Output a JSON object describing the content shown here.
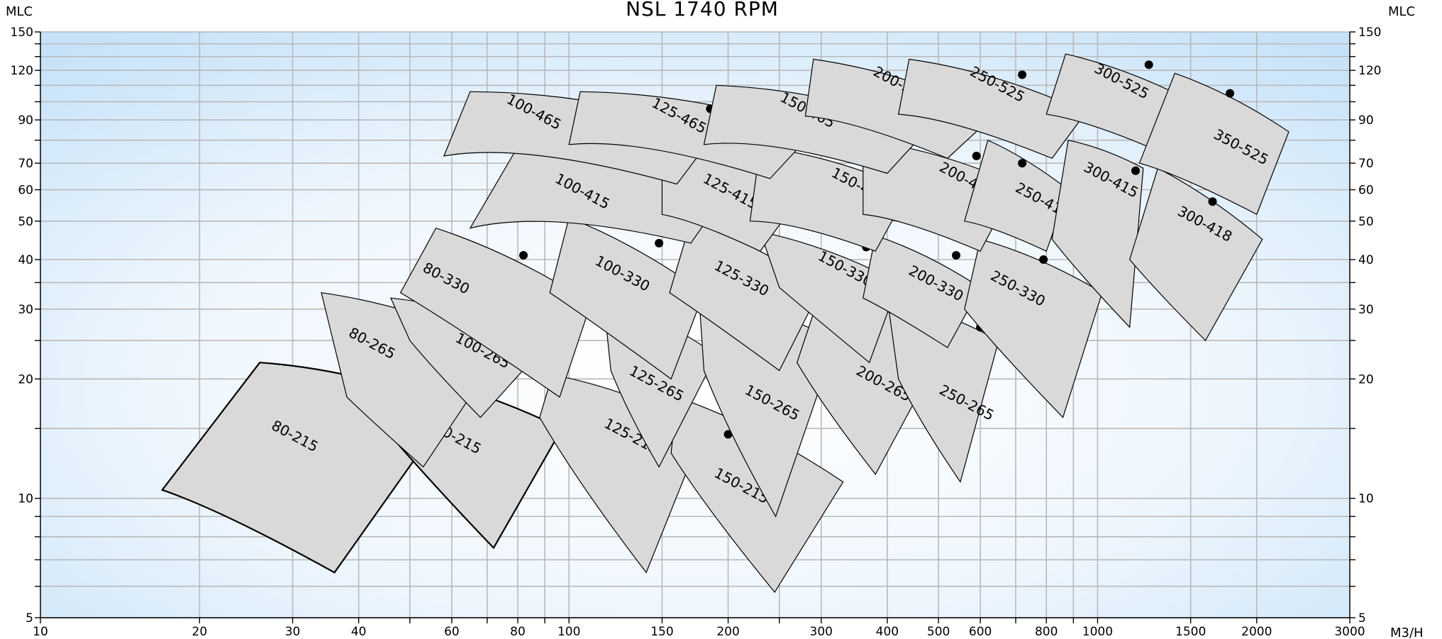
{
  "chart_data": {
    "type": "pump-selection-chart",
    "title": "NSL 1740 RPM",
    "x_axis": {
      "unit": "M3/H",
      "scale": "log",
      "range": [
        10,
        3000
      ],
      "tick_labels": [
        10,
        20,
        30,
        40,
        60,
        80,
        100,
        150,
        200,
        300,
        400,
        500,
        600,
        800,
        1000,
        1500,
        2000,
        3000
      ],
      "minor_ticks": [
        50,
        70,
        90,
        250,
        700,
        900
      ]
    },
    "y_axis": {
      "unit_left": "MLC",
      "unit_right": "MLC",
      "scale": "log",
      "range": [
        5,
        150
      ],
      "tick_labels": [
        5,
        10,
        20,
        30,
        40,
        50,
        60,
        70,
        90,
        120,
        150
      ],
      "minor_ticks": [
        6,
        7,
        8,
        9,
        15,
        25,
        35,
        80,
        100,
        110,
        130,
        140
      ]
    },
    "grid": true,
    "background": {
      "gradient_edge": "#c6e2f8",
      "gradient_center": "#ffffff"
    },
    "tile_fill": "#d9d9d9",
    "pumps": [
      {
        "label": "80-215",
        "bep": null,
        "corners": [
          [
            17,
            10.5
          ],
          [
            26,
            22
          ],
          [
            60,
            17
          ],
          [
            36,
            6.5
          ]
        ],
        "label_at": [
          30,
          14
        ],
        "bold": true
      },
      {
        "label": "100-215",
        "bep": [
          72,
          19
        ],
        "corners": [
          [
            40,
            18
          ],
          [
            42,
            21.5
          ],
          [
            97,
            15
          ],
          [
            72,
            7.5
          ]
        ],
        "label_at": [
          60,
          14
        ],
        "bold": true
      },
      {
        "label": "125-215",
        "bep": [
          137,
          18.5
        ],
        "corners": [
          [
            88,
            16
          ],
          [
            93,
            20.5
          ],
          [
            180,
            15
          ],
          [
            140,
            6.5
          ]
        ],
        "label_at": [
          130,
          14
        ]
      },
      {
        "label": "150-215",
        "bep": [
          200,
          14.5
        ],
        "corners": [
          [
            156,
            13
          ],
          [
            160,
            18
          ],
          [
            330,
            11
          ],
          [
            245,
            5.8
          ]
        ],
        "label_at": [
          210,
          10.5
        ]
      },
      {
        "label": "80-265",
        "bep": [
          55,
          28.5
        ],
        "corners": [
          [
            38,
            18
          ],
          [
            34,
            33
          ],
          [
            75,
            24
          ],
          [
            53,
            12
          ]
        ],
        "label_at": [
          42,
          24
        ]
      },
      {
        "label": "100-265",
        "bep": [
          73,
          28.5
        ],
        "corners": [
          [
            50,
            25
          ],
          [
            46,
            32
          ],
          [
            92,
            25
          ],
          [
            68,
            16
          ]
        ],
        "label_at": [
          68,
          23
        ]
      },
      {
        "label": "125-265",
        "bep": [
          150,
          27.5
        ],
        "corners": [
          [
            120,
            21
          ],
          [
            116,
            32.5
          ],
          [
            190,
            23
          ],
          [
            148,
            12
          ]
        ],
        "label_at": [
          145,
          19
        ]
      },
      {
        "label": "150-265",
        "bep": [
          260,
          28
        ],
        "corners": [
          [
            180,
            21
          ],
          [
            176,
            33
          ],
          [
            320,
            25
          ],
          [
            246,
            9
          ]
        ],
        "label_at": [
          240,
          17
        ]
      },
      {
        "label": "200-265",
        "bep": [
          415,
          28.5
        ],
        "corners": [
          [
            270,
            22
          ],
          [
            300,
            33.5
          ],
          [
            520,
            25
          ],
          [
            380,
            11.5
          ]
        ],
        "label_at": [
          390,
          19
        ]
      },
      {
        "label": "250-265",
        "bep": [
          600,
          27
        ],
        "corners": [
          [
            420,
            20
          ],
          [
            400,
            32
          ],
          [
            650,
            25
          ],
          [
            550,
            11
          ]
        ],
        "label_at": [
          560,
          17
        ]
      },
      {
        "label": "80-330",
        "bep": [
          82,
          41
        ],
        "corners": [
          [
            48,
            33
          ],
          [
            56,
            48
          ],
          [
            110,
            31
          ],
          [
            96,
            18
          ]
        ],
        "label_at": [
          58,
          35
        ]
      },
      {
        "label": "100-330",
        "bep": [
          148,
          44
        ],
        "corners": [
          [
            92,
            33
          ],
          [
            100,
            51
          ],
          [
            180,
            33
          ],
          [
            156,
            20
          ]
        ],
        "label_at": [
          125,
          36
        ]
      },
      {
        "label": "125-330",
        "bep": [
          237,
          44
        ],
        "corners": [
          [
            155,
            33
          ],
          [
            170,
            50
          ],
          [
            300,
            34
          ],
          [
            250,
            21
          ]
        ],
        "label_at": [
          210,
          35
        ]
      },
      {
        "label": "150-330",
        "bep": [
          365,
          43
        ],
        "corners": [
          [
            250,
            34
          ],
          [
            230,
            47
          ],
          [
            420,
            35
          ],
          [
            370,
            22
          ]
        ],
        "label_at": [
          330,
          37
        ]
      },
      {
        "label": "200-330",
        "bep": [
          540,
          41
        ],
        "corners": [
          [
            360,
            32
          ],
          [
            380,
            46
          ],
          [
            600,
            34
          ],
          [
            520,
            24
          ]
        ],
        "label_at": [
          490,
          34
        ]
      },
      {
        "label": "250-330",
        "bep": [
          790,
          40
        ],
        "corners": [
          [
            560,
            30
          ],
          [
            600,
            45
          ],
          [
            1020,
            33
          ],
          [
            860,
            16
          ]
        ],
        "label_at": [
          700,
          33
        ]
      },
      {
        "label": "100-415",
        "bep": [
          148,
          70
        ],
        "corners": [
          [
            65,
            48
          ],
          [
            80,
            77
          ],
          [
            200,
            60
          ],
          [
            170,
            44
          ]
        ],
        "label_at": [
          105,
          58
        ]
      },
      {
        "label": "125-415",
        "bep": [
          225,
          72
        ],
        "corners": [
          [
            150,
            52
          ],
          [
            150,
            78
          ],
          [
            280,
            60
          ],
          [
            230,
            42
          ]
        ],
        "label_at": [
          200,
          58
        ]
      },
      {
        "label": "150-415",
        "bep": [
          370,
          71
        ],
        "corners": [
          [
            220,
            50
          ],
          [
            230,
            77
          ],
          [
            440,
            60
          ],
          [
            380,
            42
          ]
        ],
        "label_at": [
          350,
          60
        ]
      },
      {
        "label": "200-415",
        "bep": [
          590,
          73
        ],
        "corners": [
          [
            360,
            52
          ],
          [
            360,
            80
          ],
          [
            700,
            62
          ],
          [
            600,
            42
          ]
        ],
        "label_at": [
          560,
          62
        ]
      },
      {
        "label": "250-415",
        "bep": [
          720,
          70
        ],
        "corners": [
          [
            560,
            50
          ],
          [
            620,
            80
          ],
          [
            880,
            60
          ],
          [
            800,
            42
          ]
        ],
        "label_at": [
          780,
          55
        ]
      },
      {
        "label": "300-415",
        "bep": [
          1180,
          67
        ],
        "corners": [
          [
            820,
            45
          ],
          [
            880,
            80
          ],
          [
            1220,
            68
          ],
          [
            1150,
            27
          ]
        ],
        "label_at": [
          1050,
          62
        ]
      },
      {
        "label": "300-418",
        "bep": [
          1650,
          56
        ],
        "corners": [
          [
            1150,
            40
          ],
          [
            1300,
            68
          ],
          [
            2050,
            45
          ],
          [
            1600,
            25
          ]
        ],
        "label_at": [
          1580,
          48
        ]
      },
      {
        "label": "100-465",
        "bep": [
          117,
          93
        ],
        "corners": [
          [
            58,
            73
          ],
          [
            65,
            106
          ],
          [
            190,
            84
          ],
          [
            160,
            62
          ]
        ],
        "label_at": [
          85,
          92
        ]
      },
      {
        "label": "125-465",
        "bep": [
          185,
          96
        ],
        "corners": [
          [
            100,
            78
          ],
          [
            105,
            106
          ],
          [
            290,
            84
          ],
          [
            240,
            64
          ]
        ],
        "label_at": [
          160,
          90
        ]
      },
      {
        "label": "150-465",
        "bep": [
          335,
          104
        ],
        "corners": [
          [
            180,
            78
          ],
          [
            190,
            110
          ],
          [
            480,
            86
          ],
          [
            400,
            66
          ]
        ],
        "label_at": [
          280,
          93
        ]
      },
      {
        "label": "200-525",
        "bep": [
          460,
          118
        ],
        "corners": [
          [
            280,
            92
          ],
          [
            290,
            128
          ],
          [
            640,
            93
          ],
          [
            520,
            72
          ]
        ],
        "label_at": [
          420,
          108
        ]
      },
      {
        "label": "250-525",
        "bep": [
          720,
          117
        ],
        "corners": [
          [
            420,
            93
          ],
          [
            440,
            128
          ],
          [
            950,
            94
          ],
          [
            820,
            72
          ]
        ],
        "label_at": [
          640,
          108
        ]
      },
      {
        "label": "300-525",
        "bep": [
          1250,
          124
        ],
        "corners": [
          [
            800,
            93
          ],
          [
            870,
            132
          ],
          [
            1600,
            96
          ],
          [
            1400,
            72
          ]
        ],
        "label_at": [
          1100,
          110
        ]
      },
      {
        "label": "350-525",
        "bep": [
          1780,
          105
        ],
        "corners": [
          [
            1200,
            70
          ],
          [
            1400,
            118
          ],
          [
            2300,
            84
          ],
          [
            2000,
            52
          ]
        ],
        "label_at": [
          1850,
          75
        ]
      }
    ]
  }
}
